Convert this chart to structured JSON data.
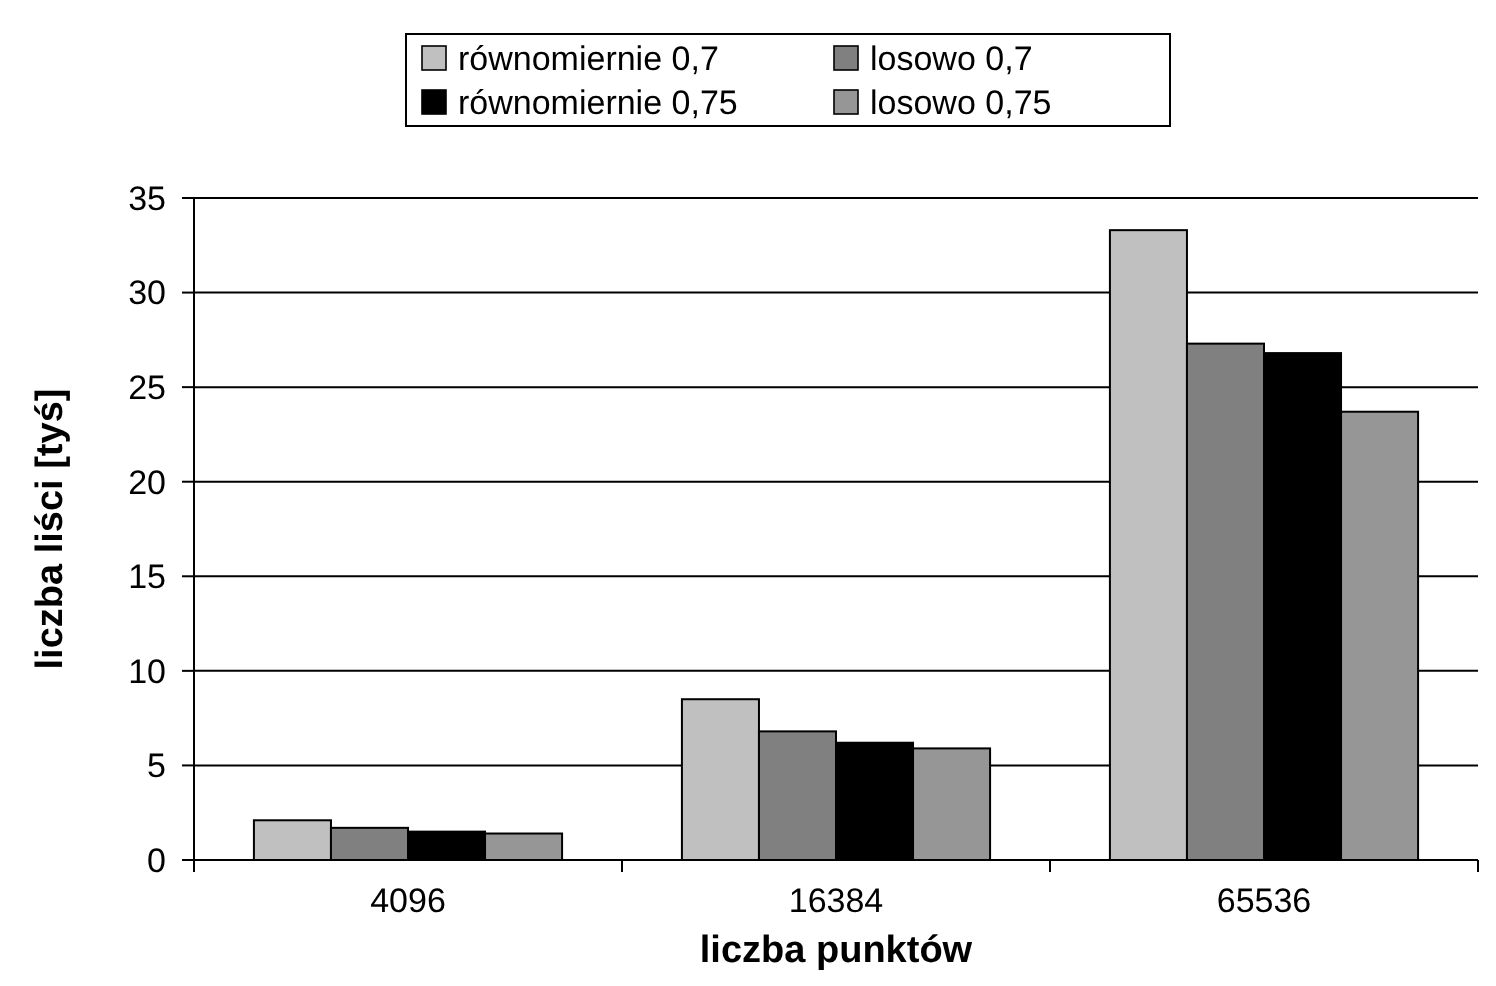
{
  "chart_data": {
    "type": "bar",
    "xlabel": "liczba punktów",
    "ylabel": "liczba liści [tyś]",
    "categories": [
      "4096",
      "16384",
      "65536"
    ],
    "series": [
      {
        "name": "równomiernie 0,7",
        "color": "#c0c0c0",
        "values": [
          2.1,
          8.5,
          33.3
        ]
      },
      {
        "name": "losowo 0,7",
        "color": "#808080",
        "values": [
          1.7,
          6.8,
          27.3
        ]
      },
      {
        "name": "równomiernie 0,75",
        "color": "#000000",
        "values": [
          1.5,
          6.2,
          26.8
        ]
      },
      {
        "name": "losowo 0,75",
        "color": "#969696",
        "values": [
          1.4,
          5.9,
          23.7
        ]
      }
    ],
    "ylim": [
      0,
      35
    ],
    "yticks": [
      0,
      5,
      10,
      15,
      20,
      25,
      30,
      35
    ],
    "grid": "y",
    "legend": "top"
  }
}
